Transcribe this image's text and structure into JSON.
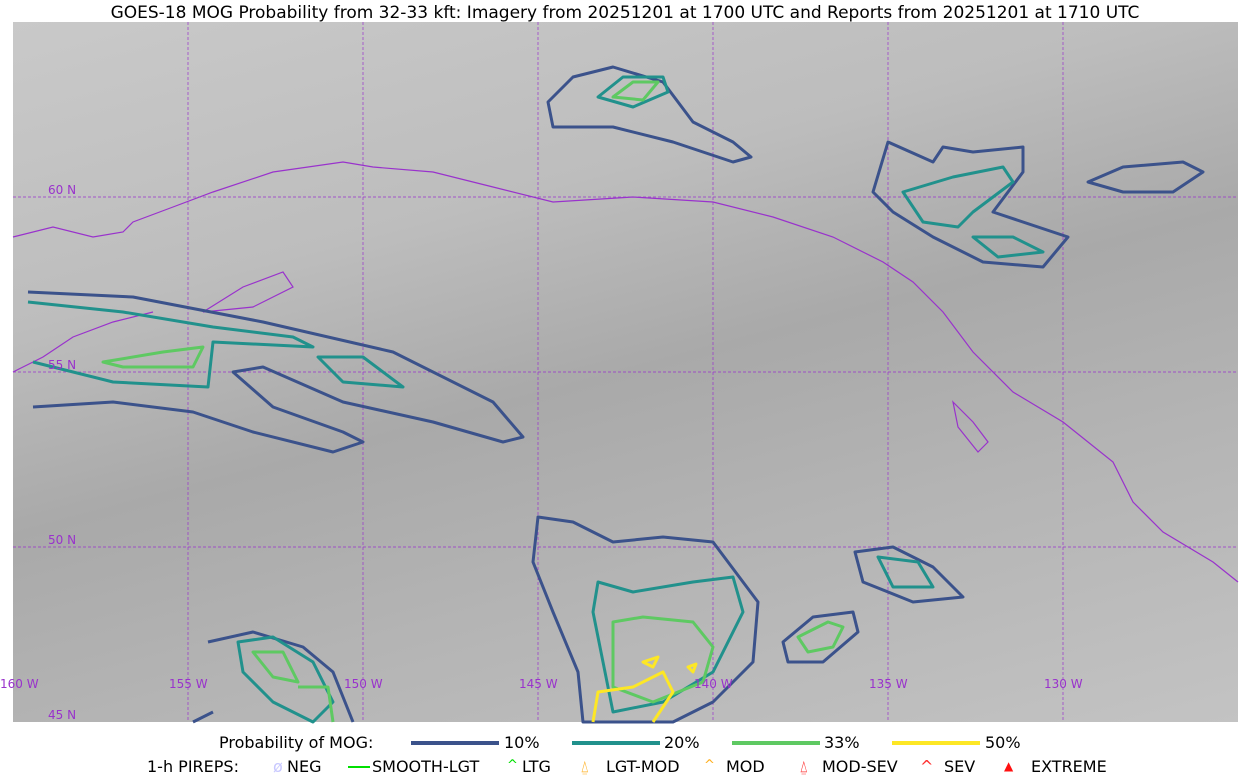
{
  "title": "GOES-18 MOG Probability from 32-33 kft: Imagery from 20251201 at 1700 UTC and Reports from 20251201 at 1710 UTC",
  "map": {
    "lat_labels": [
      "60 N",
      "55 N",
      "50 N",
      "45 N"
    ],
    "lon_labels": [
      "160 W",
      "155 W",
      "150 W",
      "145 W",
      "140 W",
      "135 W",
      "130 W"
    ],
    "gridline_color": "#9932cc",
    "coastline_color": "#9932cc"
  },
  "legend": {
    "probability": {
      "label": "Probability of MOG:",
      "items": [
        {
          "label": "10%",
          "color": "#3b528b"
        },
        {
          "label": "20%",
          "color": "#21918c"
        },
        {
          "label": "33%",
          "color": "#5ec962"
        },
        {
          "label": "50%",
          "color": "#fde725"
        }
      ]
    },
    "pireps": {
      "label": "1-h PIREPS:",
      "items": [
        {
          "label": "NEG",
          "icon": "neg-circle-icon",
          "color": "#c8c8ff"
        },
        {
          "label": "SMOOTH-LGT",
          "icon": "line-icon",
          "color": "#00e000"
        },
        {
          "label": "LTG",
          "icon": "caret-icon",
          "color": "#00e000"
        },
        {
          "label": "LGT-MOD",
          "icon": "caret-bar-icon",
          "color": "#ffb020"
        },
        {
          "label": "MOD",
          "icon": "caret-icon",
          "color": "#ffb020"
        },
        {
          "label": "MOD-SEV",
          "icon": "double-caret-bar-icon",
          "color": "#ff3030"
        },
        {
          "label": "SEV",
          "icon": "double-caret-icon",
          "color": "#ff3030"
        },
        {
          "label": "EXTREME",
          "icon": "filled-triangle-icon",
          "color": "#ff1010"
        }
      ]
    }
  }
}
